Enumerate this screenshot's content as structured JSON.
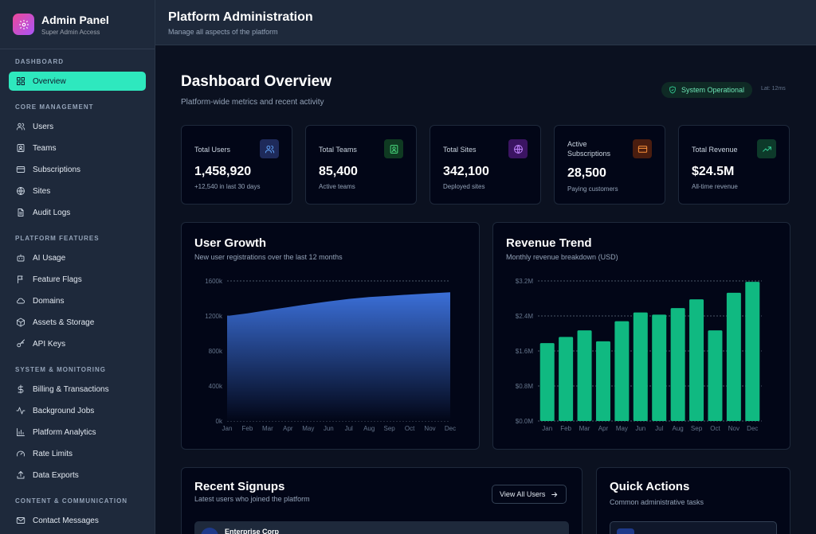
{
  "brand": {
    "title": "Admin Panel",
    "subtitle": "Super Admin Access",
    "icon": "gear-icon"
  },
  "sidebar": {
    "sections": [
      {
        "heading": "DASHBOARD",
        "items": [
          {
            "label": "Overview",
            "icon": "grid-icon",
            "active": true
          }
        ]
      },
      {
        "heading": "CORE MANAGEMENT",
        "items": [
          {
            "label": "Users",
            "icon": "users-icon"
          },
          {
            "label": "Teams",
            "icon": "id-card-icon"
          },
          {
            "label": "Subscriptions",
            "icon": "credit-card-icon"
          },
          {
            "label": "Sites",
            "icon": "globe-icon"
          },
          {
            "label": "Audit Logs",
            "icon": "file-icon"
          }
        ]
      },
      {
        "heading": "PLATFORM FEATURES",
        "items": [
          {
            "label": "AI Usage",
            "icon": "bot-icon"
          },
          {
            "label": "Feature Flags",
            "icon": "flag-icon"
          },
          {
            "label": "Domains",
            "icon": "cloud-icon"
          },
          {
            "label": "Assets & Storage",
            "icon": "box-icon"
          },
          {
            "label": "API Keys",
            "icon": "key-icon"
          }
        ]
      },
      {
        "heading": "SYSTEM & MONITORING",
        "items": [
          {
            "label": "Billing & Transactions",
            "icon": "dollar-icon"
          },
          {
            "label": "Background Jobs",
            "icon": "activity-icon"
          },
          {
            "label": "Platform Analytics",
            "icon": "bar-chart-icon"
          },
          {
            "label": "Rate Limits",
            "icon": "gauge-icon"
          },
          {
            "label": "Data Exports",
            "icon": "upload-icon"
          }
        ]
      },
      {
        "heading": "CONTENT & COMMUNICATION",
        "items": [
          {
            "label": "Contact Messages",
            "icon": "mail-icon"
          }
        ]
      }
    ]
  },
  "header": {
    "title": "Platform Administration",
    "subtitle": "Manage all aspects of the platform"
  },
  "overview": {
    "title": "Dashboard Overview",
    "subtitle": "Platform-wide metrics and recent activity",
    "status": "System Operational",
    "latency": "Lat: 12ms"
  },
  "stats": [
    {
      "label": "Total Users",
      "value": "1,458,920",
      "sub": "+12,540 in last 30 days",
      "icon": "users-icon",
      "color": "#60a5fa",
      "bg": "#1e2a5a"
    },
    {
      "label": "Total Teams",
      "value": "85,400",
      "sub": "Active teams",
      "icon": "id-card-icon",
      "color": "#4ade80",
      "bg": "#0f3a22"
    },
    {
      "label": "Total Sites",
      "value": "342,100",
      "sub": "Deployed sites",
      "icon": "globe-icon",
      "color": "#c084fc",
      "bg": "#3b1462"
    },
    {
      "label": "Active Subscriptions",
      "value": "28,500",
      "sub": "Paying customers",
      "icon": "credit-card-icon",
      "color": "#fb923c",
      "bg": "#4a1d0f"
    },
    {
      "label": "Total Revenue",
      "value": "$24.5M",
      "sub": "All-time revenue",
      "icon": "trend-up-icon",
      "color": "#34d399",
      "bg": "#0d3a2a"
    }
  ],
  "user_growth": {
    "title": "User Growth",
    "subtitle": "New user registrations over the last 12 months"
  },
  "revenue_trend": {
    "title": "Revenue Trend",
    "subtitle": "Monthly revenue breakdown (USD)"
  },
  "recent_signups": {
    "title": "Recent Signups",
    "subtitle": "Latest users who joined the platform",
    "button": "View All Users",
    "first_row": "Enterprise Corp"
  },
  "quick_actions": {
    "title": "Quick Actions",
    "subtitle": "Common administrative tasks"
  },
  "chart_data": [
    {
      "type": "area",
      "categories": [
        "Jan",
        "Feb",
        "Mar",
        "Apr",
        "May",
        "Jun",
        "Jul",
        "Aug",
        "Sep",
        "Oct",
        "Nov",
        "Dec"
      ],
      "values": [
        1200000,
        1230000,
        1265000,
        1300000,
        1335000,
        1365000,
        1395000,
        1415000,
        1430000,
        1445000,
        1458000,
        1470000
      ],
      "yticks": [
        "0k",
        "400k",
        "800k",
        "1200k",
        "1600k"
      ],
      "ylim": [
        0,
        1600000
      ],
      "color": "#3b6fd8",
      "grid": true
    },
    {
      "type": "bar",
      "categories": [
        "Jan",
        "Feb",
        "Mar",
        "Apr",
        "May",
        "Jun",
        "Jul",
        "Aug",
        "Sep",
        "Oct",
        "Nov",
        "Dec"
      ],
      "values": [
        1.78,
        1.92,
        2.07,
        1.82,
        2.28,
        2.48,
        2.43,
        2.58,
        2.78,
        2.07,
        2.93,
        3.18
      ],
      "yticks": [
        "$0.0M",
        "$0.8M",
        "$1.6M",
        "$2.4M",
        "$3.2M"
      ],
      "ylim": [
        0,
        3.2
      ],
      "color": "#10b981",
      "grid": true
    }
  ]
}
